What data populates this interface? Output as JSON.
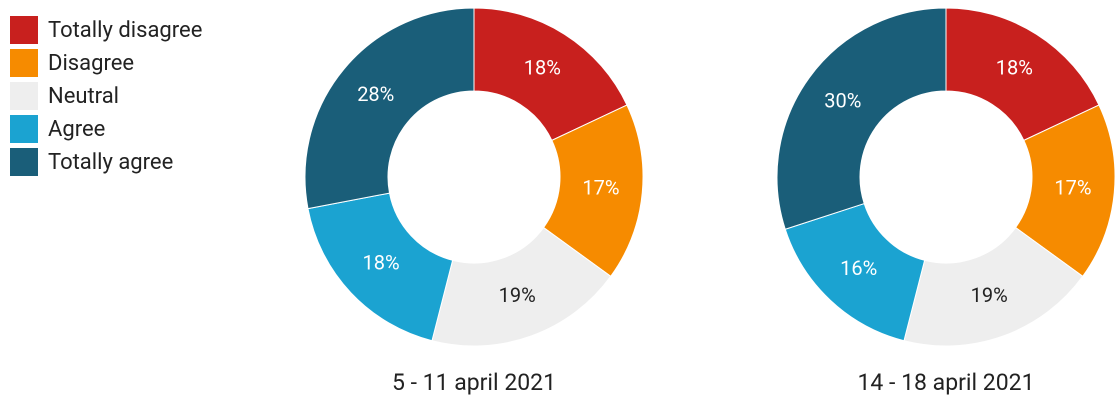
{
  "chart_data": [
    {
      "type": "pie",
      "title": "5 - 11 april 2021",
      "categories": [
        "Totally disagree",
        "Disagree",
        "Neutral",
        "Agree",
        "Totally agree"
      ],
      "values": [
        18,
        17,
        19,
        18,
        28
      ],
      "value_labels": [
        "18%",
        "17%",
        "19%",
        "18%",
        "28%"
      ],
      "colors": [
        "#c8201e",
        "#f68b00",
        "#eeeeee",
        "#1ba3d1",
        "#1a5e79"
      ]
    },
    {
      "type": "pie",
      "title": "14 - 18 april 2021",
      "categories": [
        "Totally disagree",
        "Disagree",
        "Neutral",
        "Agree",
        "Totally agree"
      ],
      "values": [
        18,
        17,
        19,
        16,
        30
      ],
      "value_labels": [
        "18%",
        "17%",
        "19%",
        "16%",
        "30%"
      ],
      "colors": [
        "#c8201e",
        "#f68b00",
        "#eeeeee",
        "#1ba3d1",
        "#1a5e79"
      ]
    }
  ]
}
